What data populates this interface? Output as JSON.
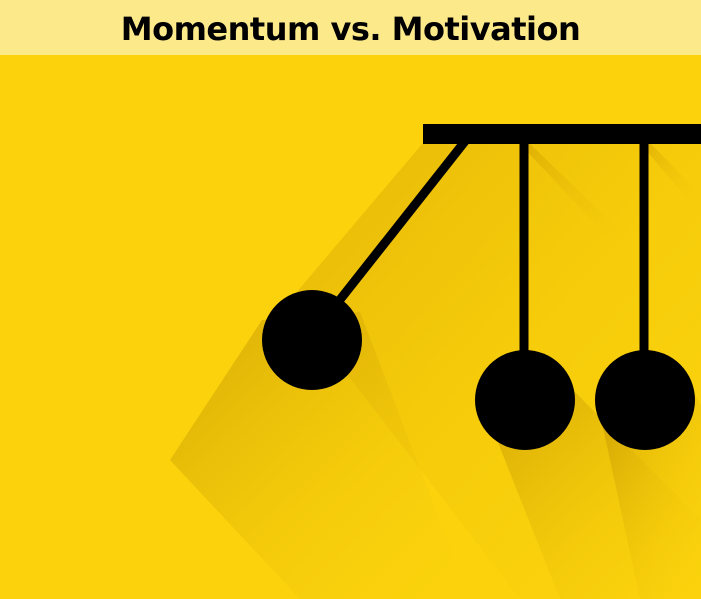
{
  "header": {
    "title": "Momentum vs. Motivation"
  },
  "illustration": {
    "subject": "newtons-cradle",
    "colors": {
      "background": "#fbd20c",
      "banner": "#fce98a",
      "ink": "#000000",
      "shadow": "#e0a800"
    }
  }
}
